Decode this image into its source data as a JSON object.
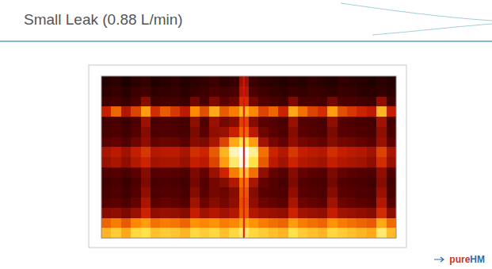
{
  "chart_data": {
    "type": "heatmap",
    "title": "Small Leak (0.88 L/min)",
    "tick_labels": false,
    "zlim": [
      0,
      100
    ],
    "cursor": 14.5,
    "values": [
      [
        12,
        14,
        10,
        15,
        18,
        11,
        13,
        16,
        12,
        14,
        17,
        20,
        15,
        18,
        45,
        20,
        16,
        14,
        12,
        15,
        13,
        17,
        14,
        12,
        16,
        15,
        13,
        11,
        14,
        12
      ],
      [
        15,
        18,
        14,
        20,
        22,
        16,
        17,
        19,
        15,
        18,
        20,
        24,
        22,
        25,
        50,
        26,
        21,
        18,
        16,
        19,
        17,
        20,
        18,
        16,
        19,
        18,
        15,
        14,
        17,
        15
      ],
      [
        20,
        22,
        18,
        24,
        40,
        21,
        23,
        22,
        19,
        35,
        24,
        38,
        30,
        34,
        58,
        36,
        27,
        24,
        22,
        38,
        25,
        24,
        23,
        36,
        25,
        24,
        22,
        20,
        42,
        21
      ],
      [
        55,
        68,
        50,
        62,
        78,
        58,
        66,
        60,
        52,
        75,
        64,
        80,
        66,
        72,
        82,
        74,
        62,
        68,
        56,
        80,
        70,
        62,
        58,
        78,
        64,
        60,
        56,
        52,
        82,
        54
      ],
      [
        22,
        25,
        20,
        26,
        45,
        24,
        26,
        25,
        22,
        42,
        27,
        44,
        36,
        40,
        62,
        40,
        30,
        28,
        24,
        44,
        28,
        27,
        25,
        42,
        28,
        26,
        24,
        22,
        46,
        23
      ],
      [
        24,
        26,
        22,
        28,
        40,
        26,
        27,
        26,
        24,
        38,
        30,
        42,
        44,
        55,
        68,
        52,
        34,
        30,
        26,
        40,
        30,
        28,
        26,
        38,
        30,
        28,
        26,
        24,
        42,
        25
      ],
      [
        30,
        32,
        28,
        34,
        42,
        32,
        34,
        33,
        30,
        40,
        38,
        48,
        62,
        80,
        90,
        78,
        46,
        36,
        32,
        42,
        36,
        34,
        32,
        40,
        36,
        34,
        32,
        30,
        44,
        31
      ],
      [
        48,
        52,
        46,
        54,
        60,
        50,
        52,
        52,
        48,
        58,
        56,
        66,
        82,
        96,
        100,
        94,
        70,
        56,
        50,
        60,
        54,
        52,
        50,
        58,
        54,
        52,
        50,
        46,
        62,
        48
      ],
      [
        44,
        48,
        42,
        50,
        56,
        46,
        48,
        48,
        44,
        54,
        52,
        62,
        78,
        92,
        98,
        90,
        66,
        52,
        46,
        56,
        50,
        48,
        46,
        54,
        50,
        48,
        46,
        42,
        58,
        44
      ],
      [
        26,
        28,
        24,
        30,
        40,
        28,
        30,
        29,
        26,
        38,
        32,
        44,
        56,
        72,
        84,
        70,
        42,
        32,
        28,
        40,
        32,
        30,
        28,
        38,
        32,
        30,
        28,
        26,
        42,
        27
      ],
      [
        22,
        24,
        20,
        26,
        38,
        24,
        26,
        25,
        22,
        36,
        28,
        36,
        40,
        50,
        70,
        48,
        32,
        28,
        24,
        38,
        28,
        26,
        24,
        36,
        28,
        26,
        24,
        22,
        40,
        23
      ],
      [
        24,
        26,
        22,
        28,
        42,
        26,
        28,
        27,
        24,
        40,
        30,
        36,
        34,
        40,
        66,
        40,
        30,
        28,
        26,
        42,
        30,
        28,
        26,
        40,
        30,
        28,
        26,
        24,
        44,
        25
      ],
      [
        28,
        30,
        26,
        32,
        48,
        30,
        32,
        31,
        28,
        46,
        34,
        40,
        36,
        42,
        64,
        42,
        34,
        32,
        30,
        48,
        34,
        32,
        30,
        46,
        34,
        32,
        30,
        28,
        50,
        29
      ],
      [
        40,
        42,
        38,
        44,
        56,
        42,
        44,
        43,
        40,
        54,
        46,
        50,
        46,
        50,
        66,
        50,
        46,
        44,
        42,
        56,
        46,
        44,
        42,
        54,
        46,
        44,
        42,
        40,
        58,
        41
      ],
      [
        68,
        72,
        66,
        74,
        78,
        70,
        72,
        71,
        68,
        76,
        74,
        76,
        72,
        74,
        80,
        76,
        72,
        70,
        68,
        78,
        72,
        70,
        68,
        76,
        72,
        70,
        68,
        66,
        80,
        69
      ],
      [
        82,
        86,
        80,
        88,
        90,
        84,
        86,
        85,
        82,
        88,
        86,
        88,
        84,
        88,
        92,
        88,
        86,
        84,
        82,
        90,
        86,
        84,
        82,
        88,
        86,
        84,
        82,
        80,
        92,
        83
      ]
    ]
  },
  "slide": {
    "logo": "pureHM"
  }
}
